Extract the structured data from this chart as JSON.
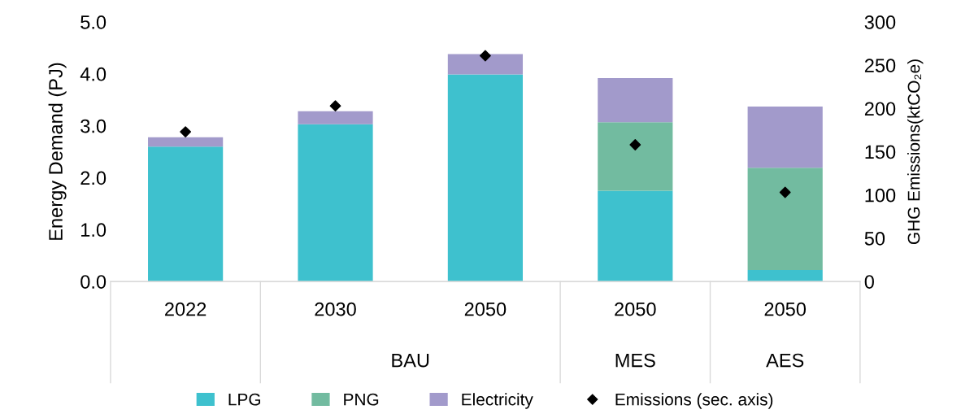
{
  "chart_data": {
    "type": "bar",
    "stacked": true,
    "categories": [
      "2022",
      "2030",
      "2050",
      "2050",
      "2050"
    ],
    "series": [
      {
        "name": "LPG",
        "color": "#3ec1ce",
        "values": [
          2.6,
          3.03,
          3.99,
          1.75,
          0.22
        ]
      },
      {
        "name": "PNG",
        "color": "#72bba0",
        "values": [
          0,
          0,
          0,
          1.32,
          1.97
        ]
      },
      {
        "name": "Electricity",
        "color": "#a29acb",
        "values": [
          0.18,
          0.25,
          0.39,
          0.85,
          1.18
        ]
      },
      {
        "name": "Emissions (sec. axis)",
        "type": "scatter",
        "axis": "y2",
        "marker": "diamond",
        "color": "#000000",
        "values": [
          173,
          203,
          261,
          158,
          103
        ]
      }
    ],
    "ylabel": "Energy Demand (PJ)",
    "y2label": "GHG Emissions(ktCO₂e)",
    "ylim": [
      0,
      5
    ],
    "yticks": [
      {
        "value": 0,
        "label": "0.0"
      },
      {
        "value": 1,
        "label": "1.0"
      },
      {
        "value": 2,
        "label": "2.0"
      },
      {
        "value": 3,
        "label": "3.0"
      },
      {
        "value": 4,
        "label": "4.0"
      },
      {
        "value": 5,
        "label": "5.0"
      }
    ],
    "y2lim": [
      0,
      300
    ],
    "y2ticks": [
      0,
      50,
      100,
      150,
      200,
      250,
      300
    ],
    "annotations": [
      "BAU",
      "MES",
      "AES"
    ],
    "legend": "bottom",
    "grid": false
  }
}
